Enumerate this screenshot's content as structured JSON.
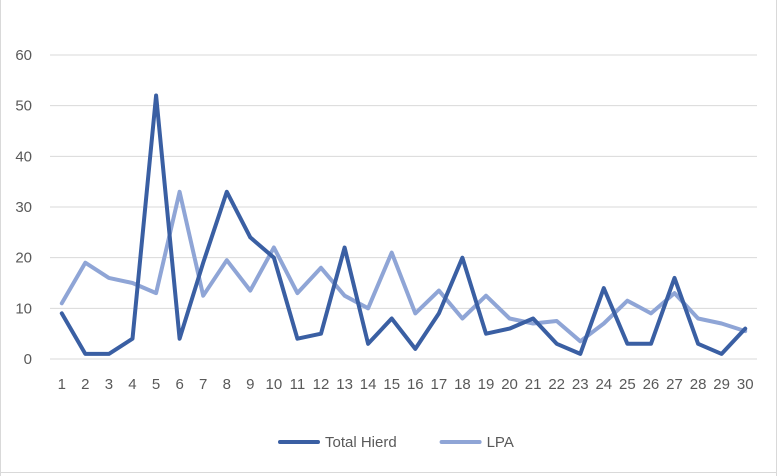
{
  "chart_data": {
    "type": "line",
    "title": "",
    "xlabel": "",
    "ylabel": "",
    "categories": [
      "1",
      "2",
      "3",
      "4",
      "5",
      "6",
      "7",
      "8",
      "9",
      "10",
      "11",
      "12",
      "13",
      "14",
      "15",
      "16",
      "17",
      "18",
      "19",
      "20",
      "21",
      "22",
      "23",
      "24",
      "25",
      "26",
      "27",
      "28",
      "29",
      "30"
    ],
    "ylim": [
      0,
      60
    ],
    "yticks": [
      0,
      10,
      20,
      30,
      40,
      50,
      60
    ],
    "grid": true,
    "legend": "bottom",
    "series": [
      {
        "name": "Total Hierd",
        "color": "#3a5fa3",
        "values": [
          9,
          1,
          1,
          4,
          52,
          4,
          19,
          33,
          24,
          20,
          4,
          5,
          22,
          3,
          8,
          2,
          9,
          20,
          5,
          6,
          8,
          3,
          1,
          14,
          3,
          3,
          16,
          3,
          1,
          6
        ]
      },
      {
        "name": "LPA",
        "color": "#8fa5d6",
        "values": [
          11,
          19,
          16,
          15,
          13,
          33,
          12.5,
          19.5,
          13.5,
          22,
          13,
          18,
          12.5,
          10,
          21,
          9,
          13.5,
          8,
          12.5,
          8,
          7,
          7.5,
          3.5,
          7,
          11.5,
          9,
          13,
          8,
          7,
          5.5
        ]
      }
    ]
  }
}
